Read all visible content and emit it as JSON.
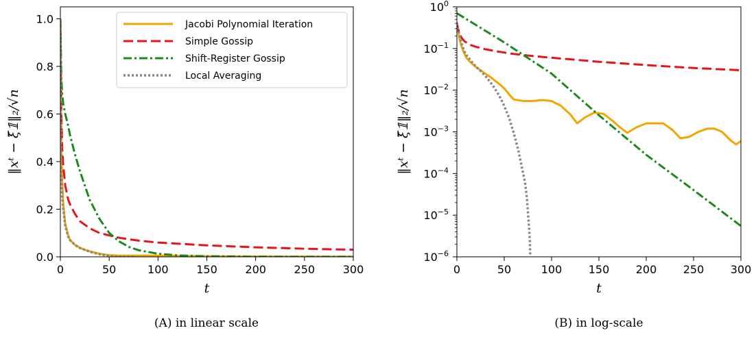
{
  "chart_data": [
    {
      "type": "line",
      "caption": "(A) in linear scale",
      "xlabel": "t",
      "ylabel": "‖xᵗ − ξ̄𝟙‖₂/√n",
      "xlim": [
        0,
        300
      ],
      "ylim": [
        0,
        1.05
      ],
      "yscale": "linear",
      "xticks": [
        0,
        50,
        100,
        150,
        200,
        250,
        300
      ],
      "yticks": [
        0.0,
        0.2,
        0.4,
        0.6,
        0.8,
        1.0
      ],
      "ytick_labels": [
        "0.0",
        "0.2",
        "0.4",
        "0.6",
        "0.8",
        "1.0"
      ],
      "legend_position": "top-right",
      "series": [
        {
          "name": "Jacobi Polynomial Iteration",
          "color": "#f5a500",
          "style": "solid",
          "x": [
            0,
            1,
            2,
            3,
            5,
            8,
            10,
            15,
            20,
            25,
            30,
            40,
            50,
            60,
            70,
            100,
            150,
            200,
            300
          ],
          "y": [
            1.0,
            0.42,
            0.3,
            0.22,
            0.14,
            0.09,
            0.07,
            0.05,
            0.038,
            0.03,
            0.023,
            0.013,
            0.007,
            0.005,
            0.005,
            0.005,
            0.003,
            0.0015,
            0.0006
          ]
        },
        {
          "name": "Simple Gossip",
          "color": "#e8141c",
          "style": "dashed",
          "x": [
            0,
            1,
            2,
            3,
            5,
            8,
            10,
            15,
            20,
            30,
            40,
            50,
            60,
            80,
            100,
            150,
            200,
            250,
            300
          ],
          "y": [
            1.0,
            0.6,
            0.45,
            0.38,
            0.3,
            0.24,
            0.22,
            0.18,
            0.15,
            0.12,
            0.1,
            0.09,
            0.08,
            0.068,
            0.06,
            0.048,
            0.04,
            0.034,
            0.03
          ]
        },
        {
          "name": "Shift-Register Gossip",
          "color": "#1a8a1a",
          "style": "dashdot",
          "x": [
            0,
            1,
            2,
            3,
            5,
            8,
            10,
            15,
            20,
            25,
            30,
            40,
            50,
            60,
            70,
            80,
            100,
            120,
            150,
            200,
            250,
            300
          ],
          "y": [
            1.0,
            0.75,
            0.68,
            0.64,
            0.6,
            0.55,
            0.51,
            0.43,
            0.36,
            0.3,
            0.24,
            0.16,
            0.1,
            0.065,
            0.042,
            0.028,
            0.013,
            0.006,
            0.0022,
            0.00038,
            6e-05,
            6e-06
          ]
        },
        {
          "name": "Local Averaging",
          "color": "#888888",
          "style": "dotted",
          "x": [
            0,
            1,
            2,
            3,
            5,
            8,
            10,
            15,
            20,
            25,
            30,
            35,
            40,
            45,
            50,
            55,
            60,
            65,
            70,
            72,
            74,
            76,
            77,
            77.5
          ],
          "y": [
            1.0,
            0.38,
            0.25,
            0.2,
            0.13,
            0.085,
            0.07,
            0.05,
            0.037,
            0.029,
            0.022,
            0.016,
            0.011,
            0.0072,
            0.0042,
            0.0022,
            0.00095,
            0.00035,
            0.0001,
            6e-05,
            2.5e-05,
            6e-06,
            2.5e-06,
            1e-06
          ]
        }
      ]
    },
    {
      "type": "line",
      "caption": "(B) in log-scale",
      "xlabel": "t",
      "ylabel": "‖xᵗ − ξ̄𝟙‖₂/√n",
      "xlim": [
        0,
        300
      ],
      "ylim": [
        1e-06,
        1
      ],
      "yscale": "log",
      "xticks": [
        0,
        50,
        100,
        150,
        200,
        250,
        300
      ],
      "yticks": [
        1,
        0.1,
        0.01,
        0.001,
        0.0001,
        1e-05,
        1e-06
      ],
      "ytick_exponents": [
        "0",
        "−1",
        "−2",
        "−3",
        "−4",
        "−5",
        "−6"
      ],
      "series": [
        {
          "name": "Jacobi Polynomial Iteration",
          "color": "#f5a500",
          "style": "solid",
          "x": [
            0,
            1,
            2,
            3,
            5,
            8,
            10,
            15,
            20,
            25,
            30,
            35,
            40,
            45,
            50,
            55,
            60,
            70,
            80,
            90,
            100,
            110,
            120,
            127,
            135,
            145,
            155,
            165,
            172,
            180,
            190,
            200,
            210,
            218,
            228,
            236,
            245,
            255,
            265,
            272,
            280,
            290,
            295,
            300
          ],
          "y": [
            0.4,
            0.3,
            0.22,
            0.16,
            0.11,
            0.075,
            0.06,
            0.045,
            0.036,
            0.03,
            0.025,
            0.021,
            0.017,
            0.014,
            0.011,
            0.008,
            0.006,
            0.0055,
            0.0055,
            0.0058,
            0.0055,
            0.0042,
            0.0026,
            0.0016,
            0.0022,
            0.0029,
            0.0027,
            0.0018,
            0.0013,
            0.00095,
            0.0013,
            0.0016,
            0.0016,
            0.0016,
            0.0011,
            0.0007,
            0.00075,
            0.001,
            0.0012,
            0.0012,
            0.001,
            0.0006,
            0.0005,
            0.0006
          ]
        },
        {
          "name": "Simple Gossip",
          "color": "#e8141c",
          "style": "dashed",
          "x": [
            0,
            1,
            2,
            3,
            5,
            8,
            10,
            15,
            20,
            30,
            40,
            50,
            60,
            80,
            100,
            150,
            200,
            250,
            300
          ],
          "y": [
            0.42,
            0.32,
            0.26,
            0.22,
            0.18,
            0.15,
            0.14,
            0.12,
            0.11,
            0.096,
            0.087,
            0.08,
            0.074,
            0.066,
            0.06,
            0.048,
            0.04,
            0.034,
            0.03
          ]
        },
        {
          "name": "Shift-Register Gossip",
          "color": "#1a8a1a",
          "style": "dashdot",
          "x": [
            0,
            50,
            100,
            150,
            200,
            250,
            300
          ],
          "y": [
            0.7,
            0.14,
            0.025,
            0.0025,
            0.00028,
            4e-05,
            5.5e-06
          ]
        },
        {
          "name": "Local Averaging",
          "color": "#888888",
          "style": "dotted",
          "x": [
            0,
            1,
            2,
            3,
            5,
            8,
            10,
            15,
            20,
            25,
            30,
            35,
            40,
            45,
            50,
            55,
            60,
            65,
            70,
            72,
            74,
            76,
            77,
            77.5
          ],
          "y": [
            0.4,
            0.3,
            0.24,
            0.2,
            0.13,
            0.085,
            0.07,
            0.05,
            0.037,
            0.029,
            0.022,
            0.016,
            0.011,
            0.0072,
            0.0042,
            0.0022,
            0.00095,
            0.00035,
            0.0001,
            6e-05,
            2.5e-05,
            6e-06,
            2.5e-06,
            1e-06
          ]
        }
      ]
    }
  ]
}
